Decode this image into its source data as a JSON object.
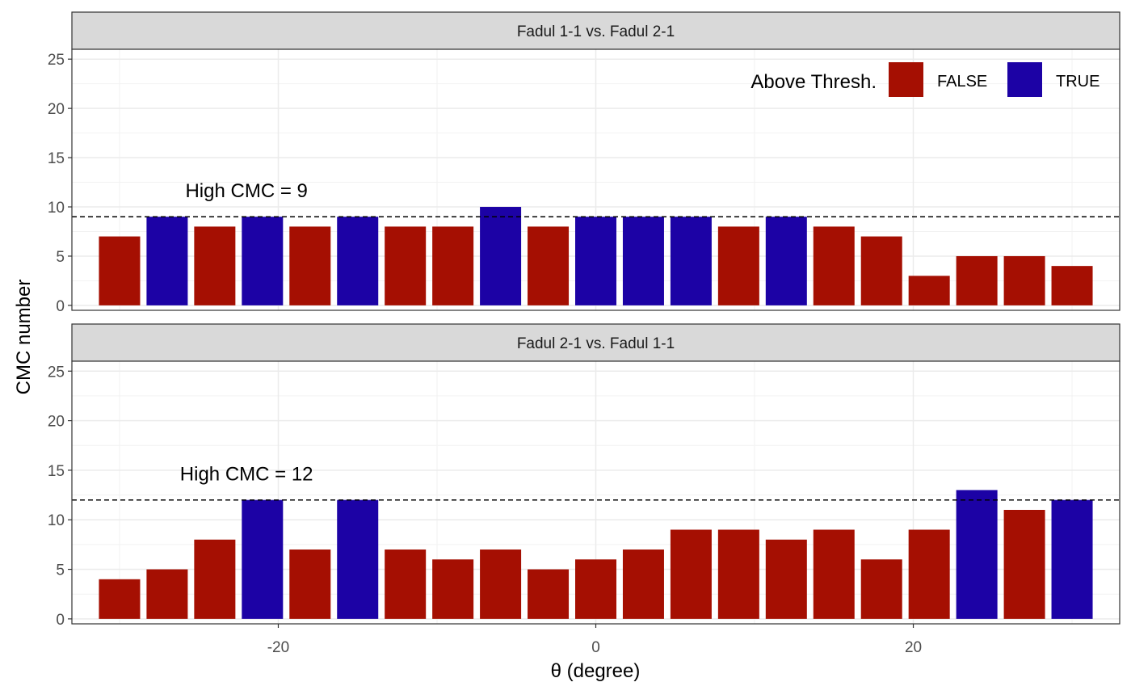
{
  "chart_data": {
    "type": "bar",
    "xlabel": "θ (degree)",
    "ylabel": "CMC number",
    "xlim": [
      -33,
      33
    ],
    "ylim": [
      -0.5,
      26
    ],
    "x_ticks": [
      -20,
      0,
      20
    ],
    "x_tick_labels": [
      "-20",
      "0",
      "20"
    ],
    "y_ticks": [
      0,
      5,
      10,
      15,
      20,
      25
    ],
    "y_tick_labels": [
      "0",
      "5",
      "10",
      "15",
      "20",
      "25"
    ],
    "grid": true,
    "legend": {
      "title": "Above Thresh.",
      "placement": "top-right",
      "entries": [
        {
          "label": "FALSE",
          "color": "#A50F02"
        },
        {
          "label": "TRUE",
          "color": "#1C02A5"
        }
      ]
    },
    "x": [
      -30,
      -27,
      -24,
      -21,
      -18,
      -15,
      -12,
      -9,
      -6,
      -3,
      0,
      3,
      6,
      9,
      12,
      15,
      18,
      21,
      24,
      27,
      30
    ],
    "panels": [
      {
        "strip": "Fadul 1-1 vs. Fadul 2-1",
        "threshold": 9,
        "annotation": "High CMC = 9",
        "values": [
          7,
          9,
          8,
          9,
          8,
          9,
          8,
          8,
          10,
          8,
          9,
          9,
          9,
          8,
          9,
          8,
          7,
          3,
          5,
          5,
          4
        ]
      },
      {
        "strip": "Fadul 2-1 vs. Fadul 1-1",
        "threshold": 12,
        "annotation": "High CMC = 12",
        "values": [
          4,
          5,
          8,
          12,
          7,
          12,
          7,
          6,
          7,
          5,
          6,
          7,
          9,
          9,
          8,
          9,
          6,
          9,
          13,
          11,
          12
        ]
      }
    ]
  }
}
